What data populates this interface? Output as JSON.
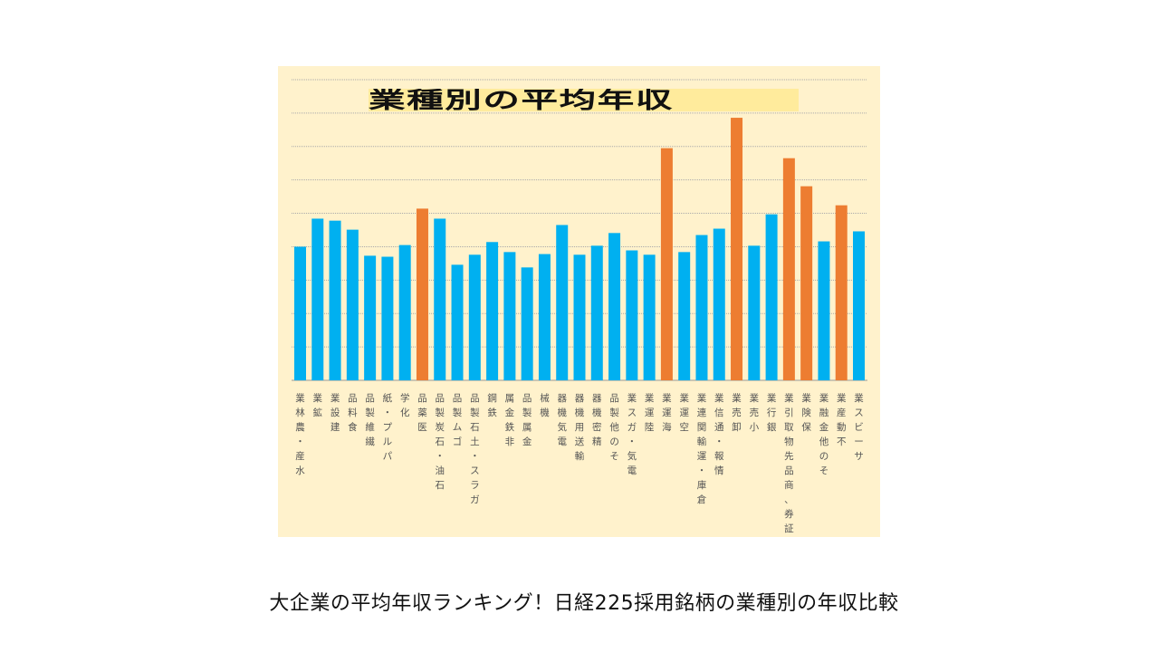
{
  "chart_data": {
    "type": "bar",
    "title": "業種別の平均年収",
    "xlabel": "",
    "ylabel": "",
    "ylim": [
      0,
      9
    ],
    "grid": true,
    "y_tick_labels_shown": false,
    "categories": [
      "水産・農林業",
      "鉱業",
      "建設業",
      "食料品",
      "繊維製品",
      "パルプ・紙",
      "化学",
      "医薬品",
      "石油・石炭製品",
      "ゴム製品",
      "ガラス・土石製品",
      "鉄鋼",
      "非鉄金属",
      "金属製品",
      "機械",
      "電気機器",
      "輸送用機器",
      "精密機器",
      "その他製品",
      "電気・ガス業",
      "陸運業",
      "海運業",
      "空運業",
      "倉庫・運輸関連業",
      "情報・通信業",
      "卸売業",
      "小売業",
      "銀行業",
      "証券、商品先物取引業",
      "保険業",
      "その他金融業",
      "不動産業",
      "サービス業"
    ],
    "values": [
      4.0,
      4.84,
      4.78,
      4.51,
      3.73,
      3.7,
      4.05,
      5.14,
      4.84,
      3.46,
      3.76,
      4.14,
      3.84,
      3.38,
      3.78,
      4.65,
      3.76,
      4.03,
      4.41,
      3.89,
      3.76,
      6.95,
      3.84,
      4.35,
      4.54,
      7.86,
      4.03,
      4.97,
      6.65,
      5.81,
      4.16,
      5.24,
      4.46
    ],
    "highlighted": [
      false,
      false,
      false,
      false,
      false,
      false,
      false,
      true,
      false,
      false,
      false,
      false,
      false,
      false,
      false,
      false,
      false,
      false,
      false,
      false,
      false,
      true,
      false,
      false,
      false,
      true,
      false,
      false,
      true,
      true,
      false,
      true,
      false
    ],
    "colors": {
      "bar": "#00b0f0",
      "highlight": "#ed7d31",
      "background": "#fff2cc",
      "title_highlight": "#ffeb9c",
      "grid": "#aaaaaa"
    }
  },
  "caption": "大企業の平均年収ランキング！日経225採用銘柄の業種別の年収比較"
}
